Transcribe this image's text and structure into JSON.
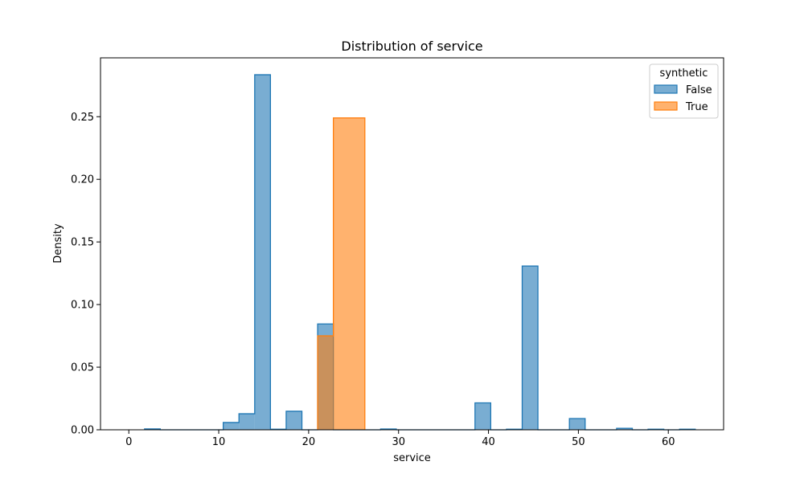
{
  "chart_data": {
    "type": "histogram",
    "title": "Distribution of service",
    "xlabel": "service",
    "ylabel": "Density",
    "xlim": [
      -3.15,
      66.15
    ],
    "ylim": [
      0,
      0.297
    ],
    "xticks": [
      0,
      10,
      20,
      30,
      40,
      50,
      60
    ],
    "yticks": [
      0.0,
      0.05,
      0.1,
      0.15,
      0.2,
      0.25
    ],
    "legend": {
      "title": "synthetic",
      "placement": "top-right",
      "entries": [
        "False",
        "True"
      ]
    },
    "series": [
      {
        "name": "False",
        "color": "#1f77b4",
        "bins": [
          {
            "x0": 1.75,
            "x1": 3.5,
            "y": 0.0007
          },
          {
            "x0": 10.5,
            "x1": 12.25,
            "y": 0.0058
          },
          {
            "x0": 12.25,
            "x1": 14.0,
            "y": 0.0128
          },
          {
            "x0": 14.0,
            "x1": 15.75,
            "y": 0.2835
          },
          {
            "x0": 15.75,
            "x1": 17.5,
            "y": 0.0005
          },
          {
            "x0": 17.5,
            "x1": 19.25,
            "y": 0.0148
          },
          {
            "x0": 21.0,
            "x1": 22.75,
            "y": 0.0845
          },
          {
            "x0": 28.0,
            "x1": 29.75,
            "y": 0.0006
          },
          {
            "x0": 38.5,
            "x1": 40.25,
            "y": 0.0215
          },
          {
            "x0": 42.0,
            "x1": 43.75,
            "y": 0.0005
          },
          {
            "x0": 43.75,
            "x1": 45.5,
            "y": 0.1308
          },
          {
            "x0": 49.0,
            "x1": 50.75,
            "y": 0.009
          },
          {
            "x0": 54.25,
            "x1": 56.0,
            "y": 0.0012
          },
          {
            "x0": 57.75,
            "x1": 59.5,
            "y": 0.0005
          },
          {
            "x0": 61.25,
            "x1": 63.0,
            "y": 0.0005
          }
        ]
      },
      {
        "name": "True",
        "color": "#ff7f0e",
        "bins": [
          {
            "x0": 21.0,
            "x1": 22.75,
            "y": 0.075
          },
          {
            "x0": 22.75,
            "x1": 26.25,
            "y": 0.249
          }
        ]
      }
    ]
  }
}
